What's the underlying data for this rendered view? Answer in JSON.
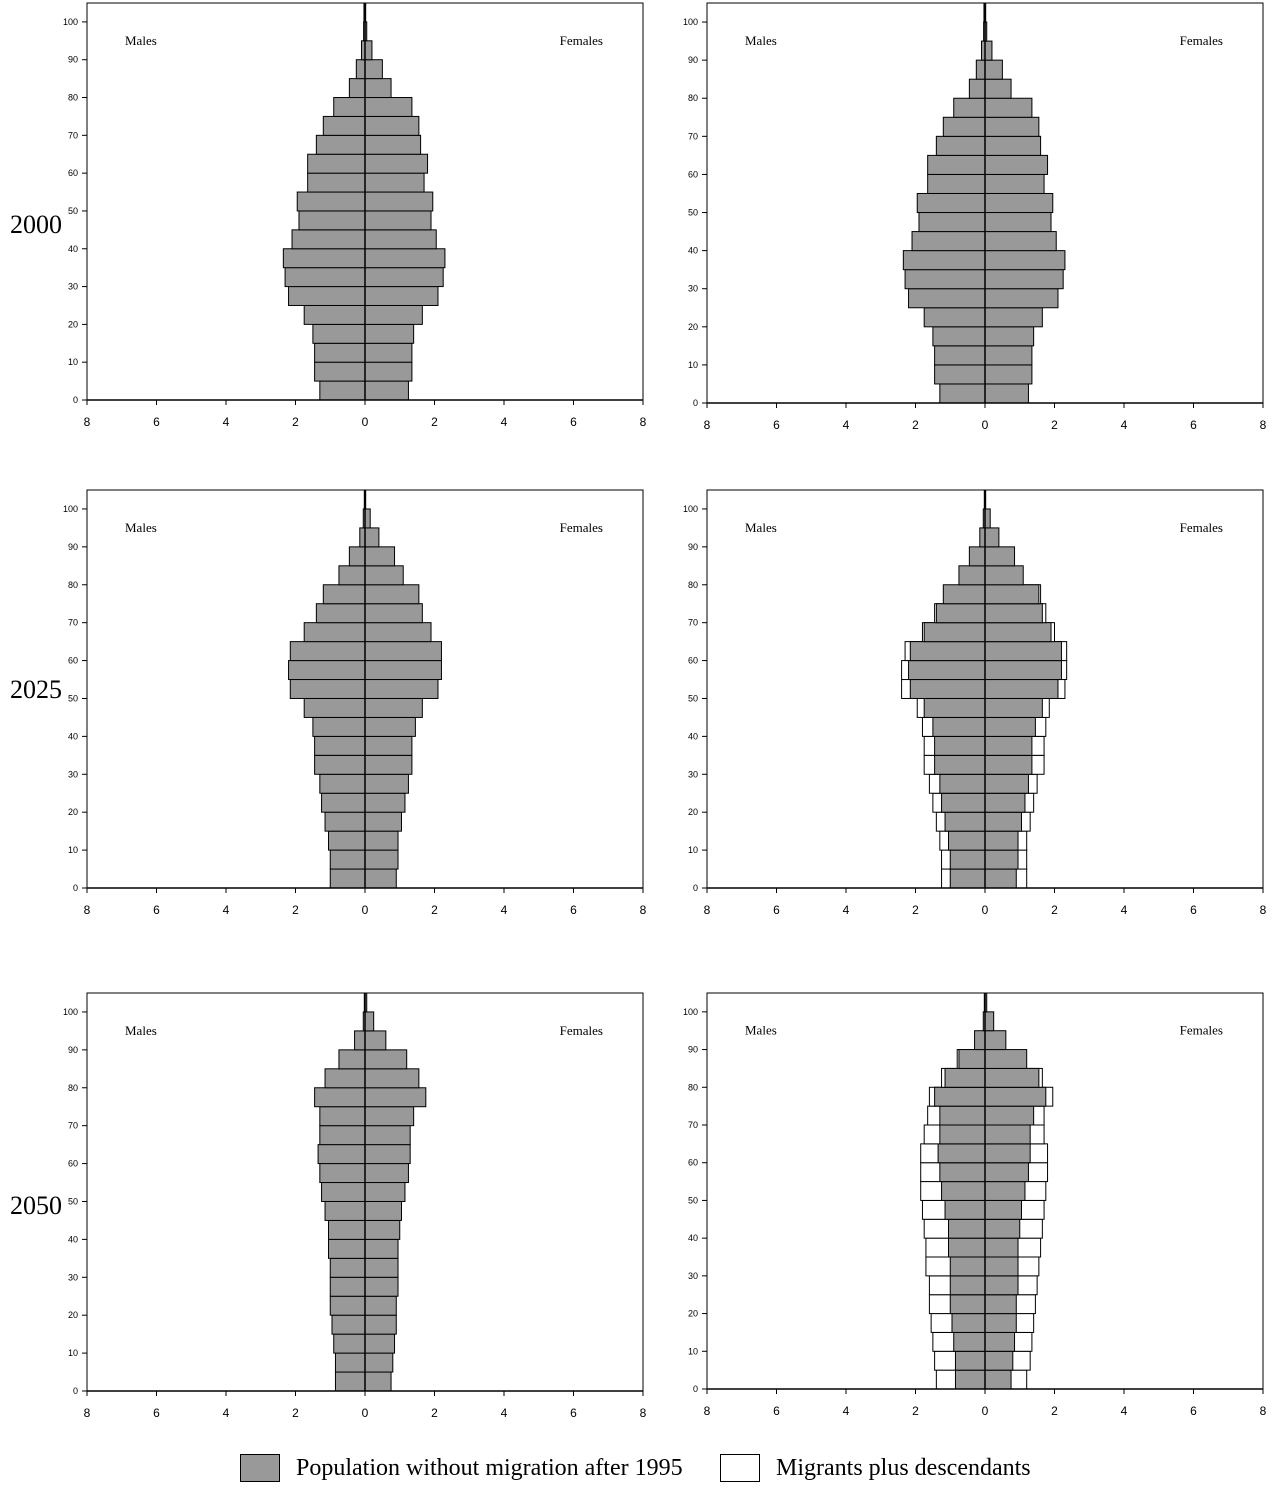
{
  "chart_data": [
    {
      "type": "bar",
      "year_label": "2000",
      "scenario": "without_migration",
      "age_ticks": [
        0,
        10,
        20,
        30,
        40,
        50,
        60,
        70,
        80,
        90,
        100
      ],
      "x_ticks": [
        "8",
        "6",
        "4",
        "2",
        "0",
        "2",
        "4",
        "6",
        "8"
      ],
      "males_label": "Males",
      "females_label": "Females",
      "age_groups": [
        "0-4",
        "5-9",
        "10-14",
        "15-19",
        "20-24",
        "25-29",
        "30-34",
        "35-39",
        "40-44",
        "45-49",
        "50-54",
        "55-59",
        "60-64",
        "65-69",
        "70-74",
        "75-79",
        "80-84",
        "85-89",
        "90-94",
        "95-99",
        "100+"
      ],
      "males_base": [
        1.3,
        1.45,
        1.45,
        1.5,
        1.75,
        2.2,
        2.3,
        2.35,
        2.1,
        1.9,
        1.95,
        1.65,
        1.65,
        1.4,
        1.2,
        0.9,
        0.45,
        0.25,
        0.1,
        0.04,
        0.03
      ],
      "females_base": [
        1.25,
        1.35,
        1.35,
        1.4,
        1.65,
        2.1,
        2.25,
        2.3,
        2.05,
        1.9,
        1.95,
        1.7,
        1.8,
        1.6,
        1.55,
        1.35,
        0.75,
        0.5,
        0.2,
        0.05,
        0.02
      ],
      "males_total": [
        1.3,
        1.45,
        1.45,
        1.5,
        1.75,
        2.2,
        2.3,
        2.35,
        2.1,
        1.9,
        1.95,
        1.65,
        1.65,
        1.4,
        1.2,
        0.9,
        0.45,
        0.25,
        0.1,
        0.04,
        0.03
      ],
      "females_total": [
        1.25,
        1.35,
        1.35,
        1.4,
        1.65,
        2.1,
        2.25,
        2.3,
        2.05,
        1.9,
        1.95,
        1.7,
        1.8,
        1.6,
        1.55,
        1.35,
        0.75,
        0.5,
        0.2,
        0.05,
        0.02
      ]
    },
    {
      "type": "bar",
      "scenario": "with_migration",
      "age_ticks": [
        0,
        10,
        20,
        30,
        40,
        50,
        60,
        70,
        80,
        90,
        100
      ],
      "x_ticks": [
        "8",
        "6",
        "4",
        "2",
        "0",
        "2",
        "4",
        "6",
        "8"
      ],
      "males_label": "Males",
      "females_label": "Females",
      "age_groups": [
        "0-4",
        "5-9",
        "10-14",
        "15-19",
        "20-24",
        "25-29",
        "30-34",
        "35-39",
        "40-44",
        "45-49",
        "50-54",
        "55-59",
        "60-64",
        "65-69",
        "70-74",
        "75-79",
        "80-84",
        "85-89",
        "90-94",
        "95-99",
        "100+"
      ],
      "males_base": [
        1.3,
        1.45,
        1.45,
        1.5,
        1.75,
        2.2,
        2.3,
        2.35,
        2.1,
        1.9,
        1.95,
        1.65,
        1.65,
        1.4,
        1.2,
        0.9,
        0.45,
        0.25,
        0.1,
        0.04,
        0.03
      ],
      "females_base": [
        1.25,
        1.35,
        1.35,
        1.4,
        1.65,
        2.1,
        2.25,
        2.3,
        2.05,
        1.9,
        1.95,
        1.7,
        1.8,
        1.6,
        1.55,
        1.35,
        0.75,
        0.5,
        0.2,
        0.05,
        0.02
      ],
      "males_total": [
        1.3,
        1.45,
        1.45,
        1.5,
        1.75,
        2.2,
        2.3,
        2.35,
        2.1,
        1.9,
        1.95,
        1.65,
        1.65,
        1.4,
        1.2,
        0.9,
        0.45,
        0.25,
        0.1,
        0.04,
        0.03
      ],
      "females_total": [
        1.25,
        1.35,
        1.35,
        1.4,
        1.65,
        2.1,
        2.25,
        2.3,
        2.05,
        1.9,
        1.95,
        1.7,
        1.8,
        1.6,
        1.55,
        1.35,
        0.75,
        0.5,
        0.2,
        0.05,
        0.02
      ]
    },
    {
      "type": "bar",
      "year_label": "2025",
      "scenario": "without_migration",
      "age_ticks": [
        0,
        10,
        20,
        30,
        40,
        50,
        60,
        70,
        80,
        90,
        100
      ],
      "x_ticks": [
        "8",
        "6",
        "4",
        "2",
        "0",
        "2",
        "4",
        "6",
        "8"
      ],
      "males_label": "Males",
      "females_label": "Females",
      "age_groups": [
        "0-4",
        "5-9",
        "10-14",
        "15-19",
        "20-24",
        "25-29",
        "30-34",
        "35-39",
        "40-44",
        "45-49",
        "50-54",
        "55-59",
        "60-64",
        "65-69",
        "70-74",
        "75-79",
        "80-84",
        "85-89",
        "90-94",
        "95-99",
        "100+"
      ],
      "males_base": [
        1.0,
        1.0,
        1.05,
        1.15,
        1.25,
        1.3,
        1.45,
        1.45,
        1.5,
        1.75,
        2.15,
        2.2,
        2.15,
        1.75,
        1.4,
        1.2,
        0.75,
        0.45,
        0.15,
        0.05,
        0.02
      ],
      "females_base": [
        0.9,
        0.95,
        0.95,
        1.05,
        1.15,
        1.25,
        1.35,
        1.35,
        1.45,
        1.65,
        2.1,
        2.2,
        2.2,
        1.9,
        1.65,
        1.55,
        1.1,
        0.85,
        0.4,
        0.15,
        0.02
      ],
      "males_total": [
        1.0,
        1.0,
        1.05,
        1.15,
        1.25,
        1.3,
        1.45,
        1.45,
        1.5,
        1.75,
        2.15,
        2.2,
        2.15,
        1.75,
        1.4,
        1.2,
        0.75,
        0.45,
        0.15,
        0.05,
        0.02
      ],
      "females_total": [
        0.9,
        0.95,
        0.95,
        1.05,
        1.15,
        1.25,
        1.35,
        1.35,
        1.45,
        1.65,
        2.1,
        2.2,
        2.2,
        1.9,
        1.65,
        1.55,
        1.1,
        0.85,
        0.4,
        0.15,
        0.02
      ]
    },
    {
      "type": "bar",
      "scenario": "with_migration",
      "age_ticks": [
        0,
        10,
        20,
        30,
        40,
        50,
        60,
        70,
        80,
        90,
        100
      ],
      "x_ticks": [
        "8",
        "6",
        "4",
        "2",
        "0",
        "2",
        "4",
        "6",
        "8"
      ],
      "males_label": "Males",
      "females_label": "Females",
      "age_groups": [
        "0-4",
        "5-9",
        "10-14",
        "15-19",
        "20-24",
        "25-29",
        "30-34",
        "35-39",
        "40-44",
        "45-49",
        "50-54",
        "55-59",
        "60-64",
        "65-69",
        "70-74",
        "75-79",
        "80-84",
        "85-89",
        "90-94",
        "95-99",
        "100+"
      ],
      "males_base": [
        1.0,
        1.0,
        1.05,
        1.15,
        1.25,
        1.3,
        1.45,
        1.45,
        1.5,
        1.75,
        2.15,
        2.2,
        2.15,
        1.75,
        1.4,
        1.2,
        0.75,
        0.45,
        0.15,
        0.05,
        0.02
      ],
      "females_base": [
        0.9,
        0.95,
        0.95,
        1.05,
        1.15,
        1.25,
        1.35,
        1.35,
        1.45,
        1.65,
        2.1,
        2.2,
        2.2,
        1.9,
        1.65,
        1.55,
        1.1,
        0.85,
        0.4,
        0.15,
        0.02
      ],
      "males_total": [
        1.25,
        1.25,
        1.3,
        1.4,
        1.5,
        1.6,
        1.75,
        1.75,
        1.8,
        1.95,
        2.4,
        2.4,
        2.3,
        1.8,
        1.45,
        1.2,
        0.75,
        0.45,
        0.15,
        0.05,
        0.02
      ],
      "females_total": [
        1.2,
        1.2,
        1.2,
        1.3,
        1.4,
        1.5,
        1.7,
        1.7,
        1.75,
        1.85,
        2.3,
        2.35,
        2.35,
        2.0,
        1.75,
        1.6,
        1.1,
        0.85,
        0.4,
        0.15,
        0.02
      ]
    },
    {
      "type": "bar",
      "year_label": "2050",
      "scenario": "without_migration",
      "age_ticks": [
        0,
        10,
        20,
        30,
        40,
        50,
        60,
        70,
        80,
        90,
        100
      ],
      "x_ticks": [
        "8",
        "6",
        "4",
        "2",
        "0",
        "2",
        "4",
        "6",
        "8"
      ],
      "males_label": "Males",
      "females_label": "Females",
      "age_groups": [
        "0-4",
        "5-9",
        "10-14",
        "15-19",
        "20-24",
        "25-29",
        "30-34",
        "35-39",
        "40-44",
        "45-49",
        "50-54",
        "55-59",
        "60-64",
        "65-69",
        "70-74",
        "75-79",
        "80-84",
        "85-89",
        "90-94",
        "95-99",
        "100+"
      ],
      "males_base": [
        0.85,
        0.85,
        0.9,
        0.95,
        1.0,
        1.0,
        1.0,
        1.05,
        1.05,
        1.15,
        1.25,
        1.3,
        1.35,
        1.3,
        1.3,
        1.45,
        1.15,
        0.75,
        0.3,
        0.05,
        0.02
      ],
      "females_base": [
        0.75,
        0.8,
        0.85,
        0.9,
        0.9,
        0.95,
        0.95,
        0.95,
        1.0,
        1.05,
        1.15,
        1.25,
        1.3,
        1.3,
        1.4,
        1.75,
        1.55,
        1.2,
        0.6,
        0.25,
        0.05
      ],
      "males_total": [
        0.85,
        0.85,
        0.9,
        0.95,
        1.0,
        1.0,
        1.0,
        1.05,
        1.05,
        1.15,
        1.25,
        1.3,
        1.35,
        1.3,
        1.3,
        1.45,
        1.15,
        0.75,
        0.3,
        0.05,
        0.02
      ],
      "females_total": [
        0.75,
        0.8,
        0.85,
        0.9,
        0.9,
        0.95,
        0.95,
        0.95,
        1.0,
        1.05,
        1.15,
        1.25,
        1.3,
        1.3,
        1.4,
        1.75,
        1.55,
        1.2,
        0.6,
        0.25,
        0.05
      ]
    },
    {
      "type": "bar",
      "scenario": "with_migration",
      "age_ticks": [
        0,
        10,
        20,
        30,
        40,
        50,
        60,
        70,
        80,
        90,
        100
      ],
      "x_ticks": [
        "8",
        "6",
        "4",
        "2",
        "0",
        "2",
        "4",
        "6",
        "8"
      ],
      "males_label": "Males",
      "females_label": "Females",
      "age_groups": [
        "0-4",
        "5-9",
        "10-14",
        "15-19",
        "20-24",
        "25-29",
        "30-34",
        "35-39",
        "40-44",
        "45-49",
        "50-54",
        "55-59",
        "60-64",
        "65-69",
        "70-74",
        "75-79",
        "80-84",
        "85-89",
        "90-94",
        "95-99",
        "100+"
      ],
      "males_base": [
        0.85,
        0.85,
        0.9,
        0.95,
        1.0,
        1.0,
        1.0,
        1.05,
        1.05,
        1.15,
        1.25,
        1.3,
        1.35,
        1.3,
        1.3,
        1.45,
        1.15,
        0.75,
        0.3,
        0.05,
        0.02
      ],
      "females_base": [
        0.75,
        0.8,
        0.85,
        0.9,
        0.9,
        0.95,
        0.95,
        0.95,
        1.0,
        1.05,
        1.15,
        1.25,
        1.3,
        1.3,
        1.4,
        1.75,
        1.55,
        1.2,
        0.6,
        0.25,
        0.05
      ],
      "males_total": [
        1.4,
        1.45,
        1.5,
        1.55,
        1.6,
        1.6,
        1.7,
        1.7,
        1.75,
        1.8,
        1.85,
        1.85,
        1.85,
        1.75,
        1.65,
        1.6,
        1.25,
        0.8,
        0.3,
        0.05,
        0.02
      ],
      "females_total": [
        1.2,
        1.3,
        1.35,
        1.4,
        1.45,
        1.5,
        1.55,
        1.6,
        1.65,
        1.7,
        1.75,
        1.8,
        1.8,
        1.7,
        1.7,
        1.95,
        1.65,
        1.2,
        0.6,
        0.25,
        0.05
      ]
    }
  ],
  "legend": {
    "base_label": "Population without migration after 1995",
    "migrants_label": "Migrants plus descendants",
    "base_color": "#999999",
    "migrants_color": "#ffffff"
  }
}
